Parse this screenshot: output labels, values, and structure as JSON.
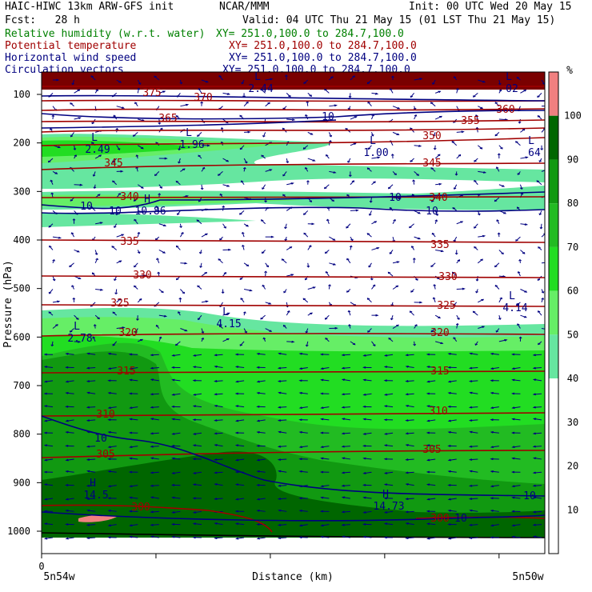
{
  "header": {
    "model": "HAIC-HIWC 13km ARW-GFS init",
    "org": "NCAR/MMM",
    "init": "Init: 00 UTC Wed 20 May 15",
    "fcst": "Fcst:   28 h",
    "valid": "Valid: 04 UTC Thu 21 May 15 (01 LST Thu 21 May 15)",
    "fields": [
      {
        "name": "Relative humidity (w.r.t. water)",
        "xy": "XY= 251.0,100.0 to 284.7,100.0"
      },
      {
        "name": "Potential temperature",
        "xy": "XY= 251.0,100.0 to 284.7,100.0"
      },
      {
        "name": "Horizontal wind speed",
        "xy": "XY= 251.0,100.0 to 284.7,100.0"
      },
      {
        "name": "Circulation vectors",
        "xy": "XY= 251.0,100.0 to 284.7,100.0"
      }
    ]
  },
  "colors": {
    "rh": "#008000",
    "theta": "#a00000",
    "wind": "#000080",
    "rh50": "#66e6a0",
    "rh60": "#66ee66",
    "rh70": "#22dd22",
    "rh80": "#22bb22",
    "rh90": "#119911",
    "rh100": "#006600",
    "rh101": "#f08080",
    "top": "#7a0000"
  },
  "chart_data": {
    "type": "heatmap",
    "xlabel": "Distance (km)",
    "ylabel": "Pressure (hPa)",
    "x_tick_labels": [
      "0"
    ],
    "x_end_labels": [
      "5n54w",
      "5n50w"
    ],
    "y_ticks": [
      100,
      200,
      300,
      400,
      500,
      600,
      700,
      800,
      900,
      1000
    ],
    "ylim": [
      1000,
      50
    ],
    "colorbar": {
      "unit": "%",
      "levels": [
        10,
        20,
        30,
        40,
        50,
        60,
        70,
        80,
        90,
        100
      ],
      "filled_from": 50
    },
    "theta_contours": [
      305,
      310,
      315,
      320,
      325,
      330,
      335,
      340,
      345,
      350,
      355,
      360,
      365,
      370,
      375
    ],
    "theta_labels": [
      "305",
      "305",
      "310",
      "310",
      "315",
      "315",
      "320",
      "320",
      "325",
      "325",
      "330",
      "330",
      "335",
      "335",
      "340",
      "340",
      "345",
      "345",
      "350",
      "355",
      "360",
      "365",
      "370",
      "375",
      "300",
      "300"
    ],
    "wind_contour_labels": [
      "10",
      "10",
      "10",
      "10",
      "10",
      "10",
      "10",
      "10"
    ],
    "extrema": [
      {
        "type": "L",
        "value": "2.49"
      },
      {
        "type": "L",
        "value": "1.96"
      },
      {
        "type": "L",
        "value": "1.00"
      },
      {
        "type": "L",
        "value": "64"
      },
      {
        "type": "H",
        "value": "10.86"
      },
      {
        "type": "L",
        "value": "4.15"
      },
      {
        "type": "L",
        "value": "4.14"
      },
      {
        "type": "L",
        "value": "2.78"
      },
      {
        "type": "H",
        "value": "14.5"
      },
      {
        "type": "H",
        "value": "14.73"
      },
      {
        "type": "L",
        "value": "2.44"
      },
      {
        "type": "L",
        "value": "02"
      }
    ]
  }
}
